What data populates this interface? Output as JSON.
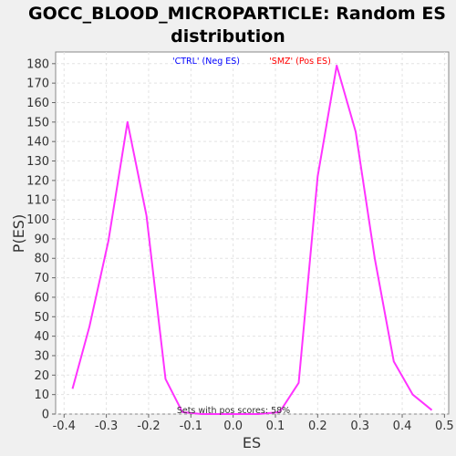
{
  "chart_data": {
    "type": "line",
    "title": "GOCC_BLOOD_MICROPARTICLE: Random ES distribution",
    "xlabel": "ES",
    "ylabel": "P(ES)",
    "xlim": [
      -0.42,
      0.51
    ],
    "ylim": [
      0,
      186
    ],
    "x_ticks": [
      -0.4,
      -0.3,
      -0.2,
      -0.1,
      0.0,
      0.1,
      0.2,
      0.3,
      0.4,
      0.5
    ],
    "x_tick_labels": [
      "-0.4",
      "-0.3",
      "-0.2",
      "-0.1",
      "0.0",
      "0.1",
      "0.2",
      "0.3",
      "0.4",
      "0.5"
    ],
    "y_ticks": [
      0,
      10,
      20,
      30,
      40,
      50,
      60,
      70,
      80,
      90,
      100,
      110,
      120,
      130,
      140,
      150,
      160,
      170,
      180
    ],
    "y_tick_labels": [
      "0",
      "10",
      "20",
      "30",
      "40",
      "50",
      "60",
      "70",
      "80",
      "90",
      "100",
      "110",
      "120",
      "130",
      "140",
      "150",
      "160",
      "170",
      "180"
    ],
    "grid": true,
    "legend": [
      {
        "label": "'CTRL' (Neg ES)",
        "color": "#0000ff"
      },
      {
        "label": "'SMZ' (Pos ES)",
        "color": "#ff0000"
      }
    ],
    "annotation": "Sets with pos scores: 58%",
    "series": [
      {
        "color": "#ff33ff",
        "x": [
          -0.38,
          -0.34,
          -0.295,
          -0.25,
          -0.205,
          -0.16,
          -0.12,
          -0.075,
          -0.03,
          0.015,
          0.06,
          0.11,
          0.155,
          0.2,
          0.245,
          0.29,
          0.335,
          0.38,
          0.425,
          0.47
        ],
        "y": [
          13,
          45,
          89,
          150,
          102,
          18,
          1,
          0,
          0,
          0,
          0,
          1,
          16,
          122,
          179,
          145,
          80,
          27,
          10,
          2
        ]
      }
    ]
  }
}
